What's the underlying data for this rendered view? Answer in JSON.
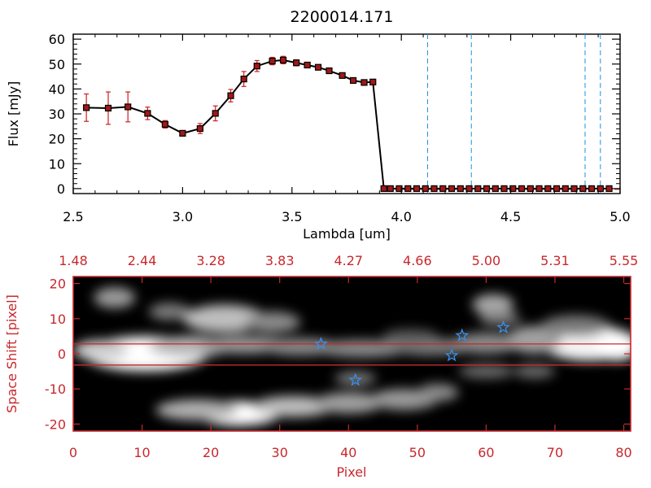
{
  "title": "2200014.171",
  "colors": {
    "spectrum_line": "#000000",
    "error_bars": "#cc1f1f",
    "markers": "#a01818",
    "marker_line": "#c83232",
    "dashed_lines": "#1f8fe0",
    "lower_frame": "#c8282c",
    "stars": "#3a8fe8"
  },
  "chart_data": [
    {
      "type": "line",
      "title": "2200014.171",
      "xlabel": "Lambda [um]",
      "ylabel": "Flux [mJy]",
      "xlim": [
        2.5,
        5.0
      ],
      "ylim": [
        -2,
        62
      ],
      "xticks": [
        "2.5",
        "3.0",
        "3.5",
        "4.0",
        "4.5",
        "5.0"
      ],
      "yticks": [
        "0",
        "10",
        "20",
        "30",
        "40",
        "50",
        "60"
      ],
      "series": [
        {
          "x": [
            2.56,
            2.66,
            2.75,
            2.84,
            2.92,
            3.0,
            3.08,
            3.15,
            3.22,
            3.28,
            3.34,
            3.41,
            3.46,
            3.52,
            3.57,
            3.62,
            3.67,
            3.73,
            3.78,
            3.83,
            3.87,
            3.92,
            3.95,
            3.99,
            4.03,
            4.07,
            4.11,
            4.15,
            4.19,
            4.23,
            4.27,
            4.31,
            4.35,
            4.39,
            4.43,
            4.47,
            4.51,
            4.55,
            4.59,
            4.63,
            4.67,
            4.71,
            4.75,
            4.79,
            4.83,
            4.87,
            4.91,
            4.95
          ],
          "y": [
            32.5,
            32.3,
            32.8,
            30.2,
            25.8,
            22.2,
            24.1,
            30.2,
            37.3,
            44.0,
            49.2,
            51.2,
            51.6,
            50.5,
            49.6,
            48.7,
            47.3,
            45.4,
            43.4,
            42.6,
            42.8,
            0,
            0,
            0,
            0,
            0,
            0,
            0,
            0,
            0,
            0,
            0,
            0,
            0,
            0,
            0,
            0,
            0,
            0,
            0,
            0,
            0,
            0,
            0,
            0,
            0,
            0,
            0
          ],
          "yerr": [
            5.5,
            6.5,
            6.0,
            2.5,
            1.5,
            0.8,
            2.0,
            3.0,
            2.5,
            3.0,
            2.2,
            1.5,
            1.5,
            1.2,
            1.0,
            1.0,
            1.0,
            1.0,
            0.8,
            0.8,
            0.8,
            0,
            0,
            0,
            0,
            0,
            0,
            0,
            0,
            0,
            0,
            0,
            0,
            0,
            0,
            0,
            0,
            0,
            0,
            0,
            0,
            0,
            0,
            0,
            0,
            0,
            0,
            0
          ]
        }
      ],
      "vlines_dashed": [
        4.12,
        4.32,
        4.84,
        4.91
      ],
      "hline_dashed": 0
    },
    {
      "type": "heatmap",
      "xlabel": "Pixel",
      "ylabel": "Space Shift [pixel]",
      "xlim": [
        0,
        81
      ],
      "ylim": [
        -22,
        22
      ],
      "xticks": [
        "0",
        "10",
        "20",
        "30",
        "40",
        "50",
        "60",
        "70",
        "80"
      ],
      "yticks": [
        "-20",
        "-10",
        "0",
        "10",
        "20"
      ],
      "top_axis_ticks": [
        "1.48",
        "2.44",
        "3.28",
        "3.83",
        "4.27",
        "4.66",
        "5.00",
        "5.31",
        "5.55"
      ],
      "extraction_rows": [
        2.8,
        -3.2
      ],
      "stars": [
        {
          "x": 36.0,
          "y": 2.8
        },
        {
          "x": 41.0,
          "y": -7.5
        },
        {
          "x": 55.0,
          "y": -0.5
        },
        {
          "x": 56.5,
          "y": 5.2
        },
        {
          "x": 62.5,
          "y": 7.5
        }
      ]
    }
  ]
}
